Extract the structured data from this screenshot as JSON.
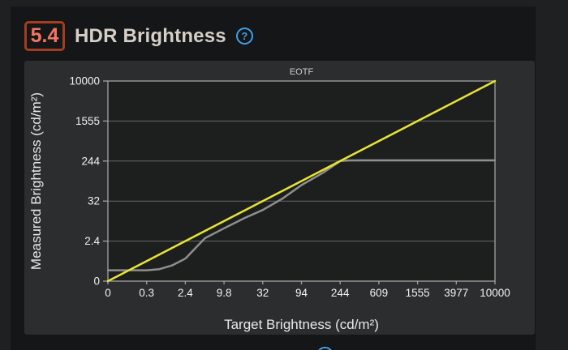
{
  "header": {
    "score": "5.4",
    "title": "HDR Brightness",
    "help_glyph": "?"
  },
  "colors": {
    "page_bg": "#1e2021",
    "card_bg": "#141617",
    "panel_bg": "#2b2d2e",
    "plot_bg": "#1d1e1e",
    "grid": "#676767",
    "axis": "#a3a3a3",
    "tick_label": "#f2f2f2",
    "axis_title": "#e9e9e9",
    "chart_title": "#cfcfcf",
    "target_line": "#e8e431",
    "measured_line": "#8f8f8f",
    "score_border": "#a43c20",
    "score_text": "#f2765f",
    "title_text": "#d5cfc7",
    "help_blue": "#3ea0ea"
  },
  "chart_data": {
    "type": "line",
    "title": "EOTF",
    "xlabel": "Target Brightness (cd/m²)",
    "ylabel": "Measured Brightness (cd/m²)",
    "x_ticks": [
      0,
      0.3,
      2.4,
      9.8,
      32,
      94,
      244,
      609,
      1555,
      3977,
      10000
    ],
    "x_tick_labels": [
      "0",
      "0.3",
      "2.4",
      "9.8",
      "32",
      "94",
      "244",
      "609",
      "1555",
      "3977",
      "10000"
    ],
    "y_ticks": [
      0,
      2.4,
      32,
      244,
      1555,
      10000
    ],
    "y_tick_labels": [
      "0",
      "2.4",
      "32",
      "244",
      "1555",
      "10000"
    ],
    "xlim": [
      0,
      10000
    ],
    "ylim": [
      0,
      10000
    ],
    "scale_note": "equal-width segments between consecutive ticks, log interpolation within each segment (linear in first segment from 0)",
    "grid": "horizontal-only",
    "legend": "none",
    "series": [
      {
        "name": "target",
        "color_key": "target_line",
        "points": [
          [
            0,
            0
          ],
          [
            10000,
            10000
          ]
        ]
      },
      {
        "name": "measured",
        "color_key": "measured_line",
        "points": [
          [
            0,
            0.65
          ],
          [
            0.3,
            0.65
          ],
          [
            0.6,
            0.72
          ],
          [
            1.2,
            0.95
          ],
          [
            2.4,
            1.35
          ],
          [
            4.9,
            2.9
          ],
          [
            9.8,
            5.5
          ],
          [
            18,
            10.5
          ],
          [
            32,
            18
          ],
          [
            55,
            36
          ],
          [
            94,
            72
          ],
          [
            160,
            135
          ],
          [
            244,
            244
          ],
          [
            300,
            251
          ],
          [
            400,
            252
          ],
          [
            609,
            252
          ],
          [
            1555,
            252
          ],
          [
            10000,
            252
          ]
        ]
      }
    ]
  }
}
